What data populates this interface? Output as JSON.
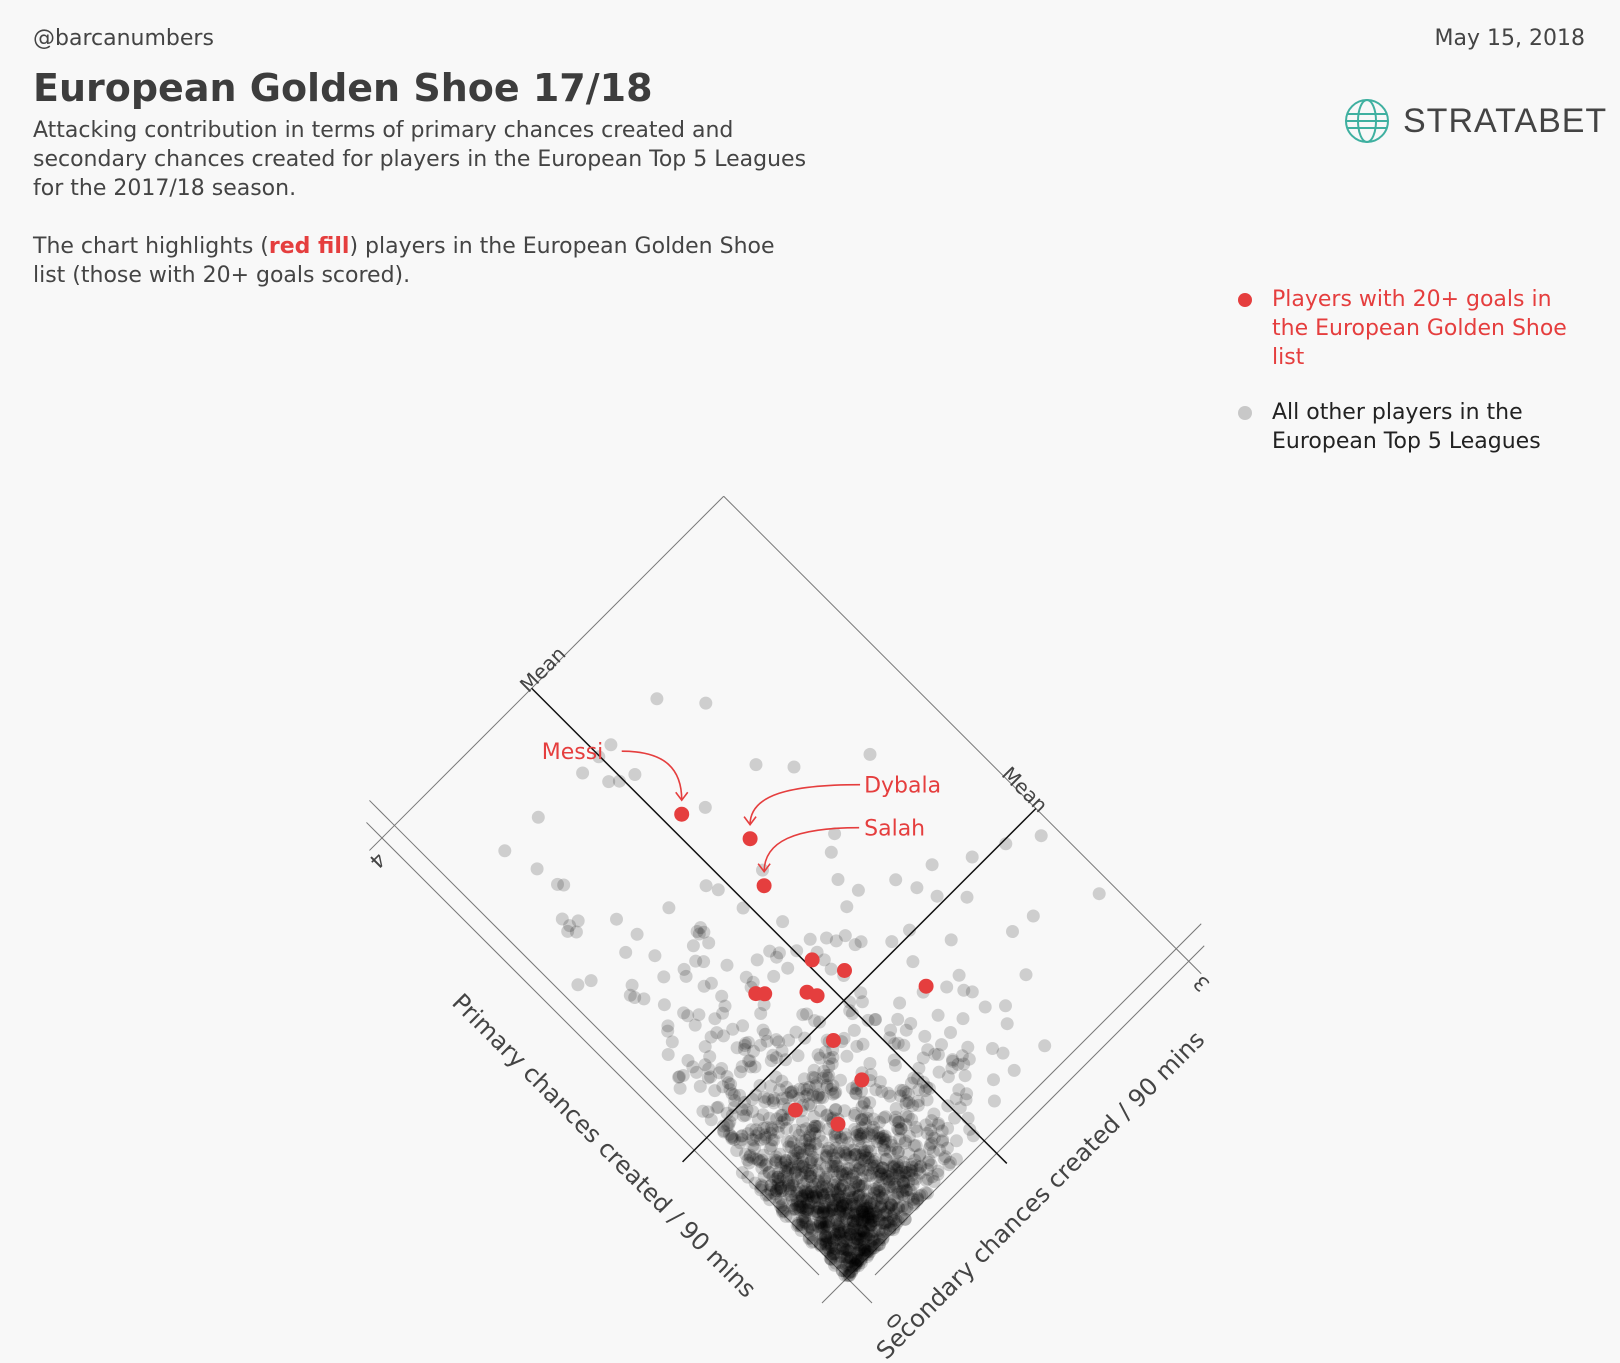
{
  "header": {
    "handle": "@barcanumbers",
    "date": "May 15, 2018",
    "title": "European Golden Shoe 17/18",
    "subtitle_1": "Attacking contribution in terms of primary chances created and secondary chances created for players in the European Top 5 Leagues for the 2017/18 season.",
    "subtitle_2_pre": "The chart highlights (",
    "subtitle_2_hl": "red fill",
    "subtitle_2_post": ") players in the European Golden Shoe list (those with 20+ goals scored)."
  },
  "logo": {
    "text": "STRATABET",
    "icon": "globe-icon",
    "color": "#3fb0a0"
  },
  "legend": {
    "items": [
      {
        "label": "Players with 20+ goals in the European Golden Shoe list",
        "color": "#e53e3e"
      },
      {
        "label": "All other players in the European Top 5 Leagues",
        "color": "#c8c8c8"
      }
    ]
  },
  "chart_data": {
    "type": "scatter",
    "orientation": "rotated 45 degrees (diamond)",
    "xlabel": "Secondary chances created / 90 mins",
    "ylabel": "Primary chances created / 90 mins",
    "x_ticks": [
      "0",
      "3"
    ],
    "y_ticks": [
      "0",
      "4"
    ],
    "xlim": [
      0,
      3
    ],
    "ylim": [
      0,
      4
    ],
    "mean_label": "Mean",
    "mean_x": 1.25,
    "mean_y": 1.24,
    "grid": false,
    "legend_position": "top-right",
    "colors": {
      "highlight": "#e53e3e",
      "others": "#000000"
    },
    "highlighted": [
      {
        "name": "Messi",
        "x": 1.36,
        "y": 2.78,
        "label": "Messi"
      },
      {
        "name": "Dybala",
        "x": 1.56,
        "y": 2.37,
        "label": "Dybala"
      },
      {
        "name": "Salah",
        "x": 1.41,
        "y": 2.1,
        "label": "Salah"
      },
      {
        "name": "",
        "x": 1.29,
        "y": 1.56
      },
      {
        "name": "",
        "x": 1.39,
        "y": 1.37
      },
      {
        "name": "",
        "x": 0.88,
        "y": 1.66
      },
      {
        "name": "",
        "x": 0.92,
        "y": 1.62
      },
      {
        "name": "",
        "x": 1.15,
        "y": 1.38
      },
      {
        "name": "",
        "x": 1.12,
        "y": 1.44
      },
      {
        "name": "",
        "x": 1.69,
        "y": 0.94
      },
      {
        "name": "",
        "x": 1.02,
        "y": 1.11
      },
      {
        "name": "",
        "x": 0.97,
        "y": 0.81
      },
      {
        "name": "",
        "x": 0.53,
        "y": 0.97
      },
      {
        "name": "",
        "x": 0.66,
        "y": 0.72
      }
    ],
    "others_count": 1400,
    "others_distribution": "dense near origin; most players within 0-1.5 secondary and 0-2 primary chances per 90; sparse outliers up to ~3.4 primary"
  }
}
